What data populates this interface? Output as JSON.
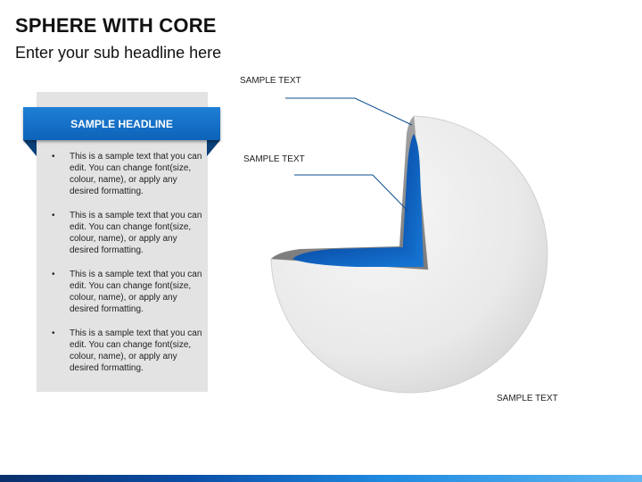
{
  "slide": {
    "title": "SPHERE WITH CORE",
    "subtitle": "Enter your sub headline here"
  },
  "panel": {
    "headline": "SAMPLE HEADLINE",
    "bullet_symbol": "•",
    "bullets": [
      "This is a sample text that you can edit. You can change font(size, colour, name), or apply any desired formatting.",
      "This is a sample text that you can edit. You can change font(size, colour, name), or apply any desired formatting.",
      "This is a sample text that you can edit. You can change font(size, colour, name), or apply any desired formatting.",
      "This is a sample text that you can edit. You can change font(size, colour, name), or apply any desired formatting."
    ]
  },
  "diagram": {
    "labels": {
      "outer": "SAMPLE TEXT",
      "core": "SAMPLE TEXT",
      "sphere": "SAMPLE TEXT"
    },
    "colors": {
      "core": "#0f68c4",
      "shell": "#8c8c8c",
      "sphere": "#ececec",
      "accent": "#0d63b8"
    }
  }
}
